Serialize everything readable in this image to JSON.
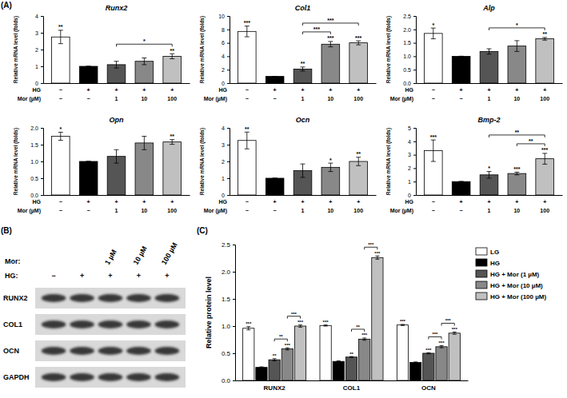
{
  "panel_labels": [
    "(A)",
    "(B)",
    "(C)"
  ],
  "chart_data": [
    {
      "type": "bar",
      "title": "Runx2",
      "ylabel": "Relative mRNA level (folds)",
      "categories": [
        null,
        null,
        null,
        null,
        null
      ],
      "values": [
        2.75,
        1,
        1.1,
        1.3,
        1.6
      ],
      "errors": [
        0.4,
        0,
        0.2,
        0.2,
        0.15
      ],
      "colors": [
        "#ffffff",
        "#000000",
        "#555555",
        "#888888",
        "#c0c0c0"
      ],
      "ylim": [
        0,
        4
      ],
      "yticks": [
        0,
        1,
        2,
        3,
        4
      ],
      "significance": [
        "**",
        null,
        null,
        null,
        "**"
      ],
      "comparisons": [
        {
          "from": 2,
          "to": 4,
          "label": "*"
        }
      ],
      "conditions": [
        {
          "label": "HG",
          "values": [
            "−",
            "+",
            "+",
            "+",
            "+"
          ]
        },
        {
          "label": "Mor (µM)",
          "values": [
            "−",
            "−",
            "1",
            "10",
            "100"
          ]
        }
      ]
    },
    {
      "type": "bar",
      "title": "Col1",
      "ylabel": "Relative mRNA level (folds)",
      "categories": [
        null,
        null,
        null,
        null,
        null
      ],
      "values": [
        7.7,
        1,
        2.1,
        5.8,
        6.0
      ],
      "errors": [
        0.8,
        0,
        0.3,
        0.4,
        0.3
      ],
      "colors": [
        "#ffffff",
        "#000000",
        "#555555",
        "#888888",
        "#c0c0c0"
      ],
      "ylim": [
        0,
        10
      ],
      "yticks": [
        0,
        2,
        4,
        6,
        8,
        10
      ],
      "significance": [
        "***",
        null,
        "**",
        "***",
        "***"
      ],
      "comparisons": [
        {
          "from": 2,
          "to": 3,
          "label": "***"
        },
        {
          "from": 2,
          "to": 4,
          "label": "***"
        }
      ],
      "conditions": [
        {
          "label": "HG",
          "values": [
            "−",
            "+",
            "+",
            "+",
            "+"
          ]
        },
        {
          "label": "Mor (µM)",
          "values": [
            "−",
            "−",
            "1",
            "10",
            "100"
          ]
        }
      ]
    },
    {
      "type": "bar",
      "title": "Alp",
      "ylabel": "Relative mRNA level (folds)",
      "categories": [
        null,
        null,
        null,
        null,
        null
      ],
      "values": [
        1.85,
        1,
        1.18,
        1.38,
        1.65
      ],
      "errors": [
        0.2,
        0,
        0.1,
        0.2,
        0.05
      ],
      "colors": [
        "#ffffff",
        "#000000",
        "#555555",
        "#888888",
        "#c0c0c0"
      ],
      "ylim": [
        0,
        2.5
      ],
      "yticks": [
        {
          "value": 0,
          "label": "0.0"
        },
        {
          "value": 0.5,
          "label": "0.5"
        },
        {
          "value": 1,
          "label": "1.0"
        },
        {
          "value": 1.5,
          "label": "1.5"
        },
        {
          "value": 2,
          "label": "2.0"
        },
        {
          "value": 2.5,
          "label": "2.5"
        }
      ],
      "significance": [
        "*",
        null,
        null,
        null,
        "**"
      ],
      "comparisons": [
        {
          "from": 2,
          "to": 4,
          "label": "*"
        }
      ],
      "conditions": [
        {
          "label": "HG",
          "values": [
            "−",
            "+",
            "+",
            "+",
            "+"
          ]
        },
        {
          "label": "Mor (µM)",
          "values": [
            "−",
            "−",
            "1",
            "10",
            "100"
          ]
        }
      ]
    },
    {
      "type": "bar",
      "title": "Opn",
      "ylabel": "Relative mRNA level (folds)",
      "categories": [
        null,
        null,
        null,
        null,
        null
      ],
      "values": [
        1.75,
        1,
        1.15,
        1.55,
        1.58
      ],
      "errors": [
        0.12,
        0,
        0.2,
        0.2,
        0.07
      ],
      "colors": [
        "#ffffff",
        "#000000",
        "#555555",
        "#888888",
        "#c0c0c0"
      ],
      "ylim": [
        0,
        2
      ],
      "yticks": [
        {
          "value": 0,
          "label": "0.0"
        },
        {
          "value": 0.5,
          "label": "0.5"
        },
        {
          "value": 1,
          "label": "1.0"
        },
        {
          "value": 1.5,
          "label": "1.5"
        },
        {
          "value": 2,
          "label": "2.0"
        }
      ],
      "significance": [
        "*",
        null,
        null,
        null,
        "**"
      ],
      "conditions": [
        {
          "label": "HG",
          "values": [
            "−",
            "+",
            "+",
            "+",
            "+"
          ]
        },
        {
          "label": "Mor (µM)",
          "values": [
            "−",
            "−",
            "1",
            "10",
            "100"
          ]
        }
      ]
    },
    {
      "type": "bar",
      "title": "Ocn",
      "ylabel": "Relative mRNA level (folds)",
      "categories": [
        null,
        null,
        null,
        null,
        null
      ],
      "values": [
        3.25,
        1,
        1.45,
        1.65,
        2.0
      ],
      "errors": [
        0.5,
        0,
        0.4,
        0.25,
        0.25
      ],
      "colors": [
        "#ffffff",
        "#000000",
        "#555555",
        "#888888",
        "#c0c0c0"
      ],
      "ylim": [
        0,
        4
      ],
      "yticks": [
        0,
        1,
        2,
        3,
        4
      ],
      "significance": [
        "**",
        null,
        null,
        "*",
        "**"
      ],
      "conditions": [
        {
          "label": "HG",
          "values": [
            "−",
            "+",
            "+",
            "+",
            "+"
          ]
        },
        {
          "label": "Mor (µM)",
          "values": [
            "−",
            "−",
            "1",
            "10",
            "100"
          ]
        }
      ]
    },
    {
      "type": "bar",
      "title": "Bmp-2",
      "ylabel": "Relative mRNA level (folds)",
      "categories": [
        null,
        null,
        null,
        null,
        null
      ],
      "values": [
        3.3,
        1,
        1.5,
        1.6,
        2.7
      ],
      "errors": [
        0.8,
        0,
        0.25,
        0.1,
        0.4
      ],
      "colors": [
        "#ffffff",
        "#000000",
        "#555555",
        "#888888",
        "#c0c0c0"
      ],
      "ylim": [
        0,
        5
      ],
      "yticks": [
        0,
        1,
        2,
        3,
        4,
        5
      ],
      "significance": [
        "***",
        null,
        "*",
        "***",
        "***"
      ],
      "comparisons": [
        {
          "from": 3,
          "to": 4,
          "label": "**"
        },
        {
          "from": 2,
          "to": 4,
          "label": "**"
        }
      ],
      "conditions": [
        {
          "label": "HG",
          "values": [
            "−",
            "+",
            "+",
            "+",
            "+"
          ]
        },
        {
          "label": "Mor (µM)",
          "values": [
            "−",
            "−",
            "1",
            "10",
            "100"
          ]
        }
      ]
    },
    {
      "type": "bar",
      "ylabel": "Relative protein level",
      "categories": [
        "RUNX2",
        "COL1",
        "OCN"
      ],
      "series": [
        {
          "name": "LG",
          "color": "#ffffff",
          "values": [
            0.96,
            1.01,
            1.02
          ],
          "errors": [
            0.03,
            0.01,
            0.01
          ],
          "significance": [
            "***",
            "***",
            "***"
          ]
        },
        {
          "name": "HG",
          "color": "#000000",
          "values": [
            0.24,
            0.35,
            0.33
          ],
          "errors": [
            0.01,
            0.01,
            0.01
          ]
        },
        {
          "name": "HG + Mor (1 µM)",
          "color": "#555555",
          "values": [
            0.38,
            0.43,
            0.5
          ],
          "errors": [
            0.02,
            0.01,
            0.01
          ],
          "significance": [
            "**",
            "**",
            "***"
          ]
        },
        {
          "name": "HG + Mor (10 µM)",
          "color": "#888888",
          "values": [
            0.58,
            0.76,
            0.62
          ],
          "errors": [
            0.02,
            0.02,
            0.02
          ],
          "significance": [
            "***",
            "***",
            "***"
          ]
        },
        {
          "name": "HG + Mor (100 µM)",
          "color": "#c0c0c0",
          "values": [
            1.0,
            2.26,
            0.87
          ],
          "errors": [
            0.02,
            0.03,
            0.02
          ],
          "significance": [
            "***",
            "***",
            "***"
          ]
        }
      ],
      "comparisons": [
        {
          "category": 0,
          "from": 2,
          "to": 3,
          "label": "**"
        },
        {
          "category": 0,
          "from": 3,
          "to": 4,
          "label": "***"
        },
        {
          "category": 1,
          "from": 2,
          "to": 3,
          "label": "**"
        },
        {
          "category": 1,
          "from": 3,
          "to": 4,
          "label": "***"
        },
        {
          "category": 2,
          "from": 2,
          "to": 3,
          "label": "***"
        },
        {
          "category": 2,
          "from": 3,
          "to": 4,
          "label": "***"
        }
      ],
      "ylim": [
        0,
        2.5
      ],
      "yticks": [
        {
          "value": 0,
          "label": "0.0"
        },
        {
          "value": 0.5,
          "label": "0.5"
        },
        {
          "value": 1,
          "label": "1.0"
        },
        {
          "value": 1.5,
          "label": "1.5"
        },
        {
          "value": 2,
          "label": "2.0"
        },
        {
          "value": 2.5,
          "label": "2.5"
        }
      ],
      "legend": "top-right"
    }
  ],
  "blot": {
    "treatments": [
      {
        "label": "Mor:",
        "values": [
          null,
          null,
          "1 µM",
          "10 µM",
          "100 µM"
        ]
      },
      {
        "label": "HG:",
        "values": [
          "−",
          "+",
          "+",
          "+",
          "+"
        ]
      }
    ],
    "rows": [
      "RUNX2",
      "COL1",
      "OCN",
      "GAPDH"
    ]
  }
}
